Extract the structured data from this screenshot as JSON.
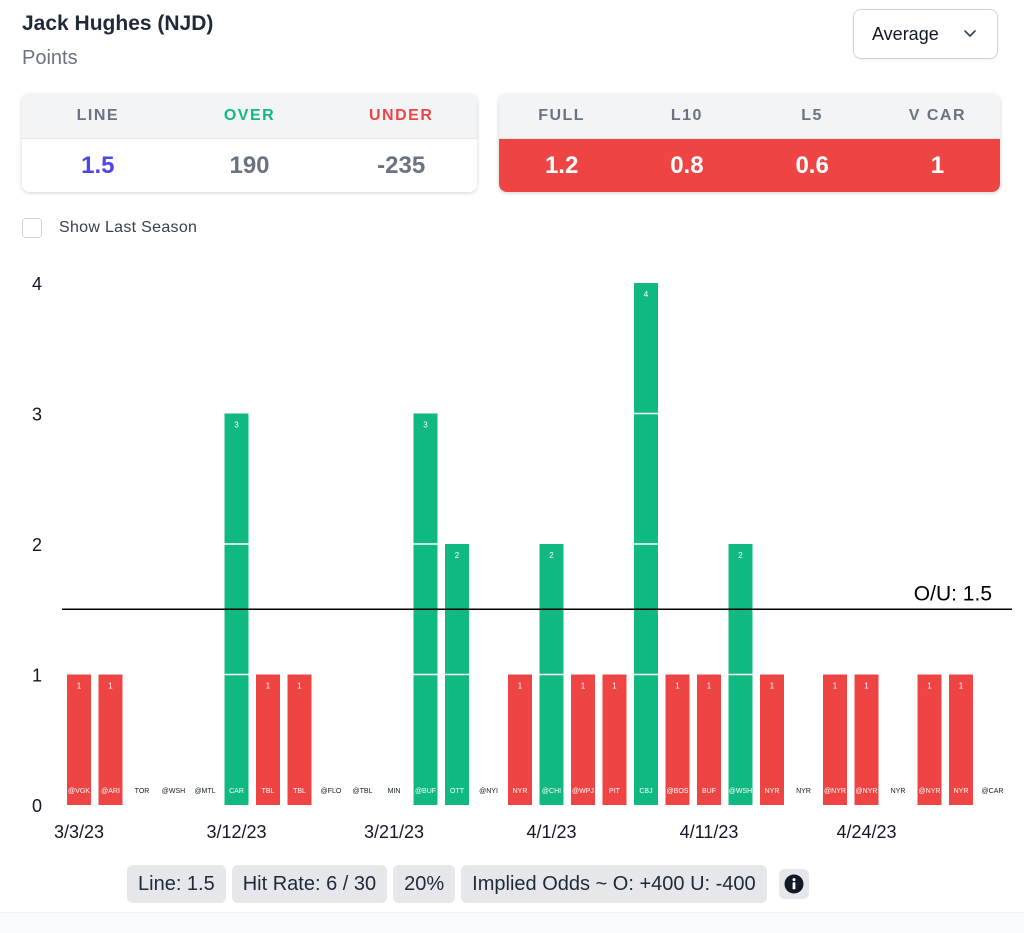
{
  "header": {
    "player_name": "Jack Hughes (NJD)",
    "stat_type": "Points"
  },
  "dropdown": {
    "selected": "Average",
    "icon": "chevron-down-icon"
  },
  "odds_card": {
    "headers": [
      "LINE",
      "OVER",
      "UNDER"
    ],
    "values": [
      "1.5",
      "190",
      "-235"
    ],
    "colors": {
      "line": "#4f46e5",
      "over_header": "#10b981",
      "under_header": "#ef4444",
      "value": "#6b7280"
    }
  },
  "avg_card": {
    "headers": [
      "FULL",
      "L10",
      "L5",
      "V CAR"
    ],
    "values": [
      "1.2",
      "0.8",
      "0.6",
      "1"
    ],
    "bg_color": "#ef4444"
  },
  "toggle": {
    "label": "Show Last Season",
    "checked": false
  },
  "chart_data": {
    "type": "bar",
    "y_ticks": [
      "0",
      "1",
      "2",
      "3",
      "4"
    ],
    "ylim": [
      0,
      4
    ],
    "line_label": "O/U: 1.5",
    "line_value": 1.5,
    "over_color": "#10b981",
    "under_color": "#ef4444",
    "opponents": [
      "@VGK",
      "@ARI",
      "TOR",
      "@WSH",
      "@MTL",
      "CAR",
      "TBL",
      "TBL",
      "@FLO",
      "@TBL",
      "MIN",
      "@BUF",
      "OTT",
      "@NYI",
      "NYR",
      "@CHI",
      "@WPJ",
      "PIT",
      "CBJ",
      "@BOS",
      "BUF",
      "@WSH",
      "NYR",
      "NYR",
      "@NYR",
      "@NYR",
      "NYR",
      "@NYR",
      "NYR",
      "@CAR"
    ],
    "values": [
      1,
      1,
      0,
      0,
      0,
      3,
      1,
      1,
      0,
      0,
      0,
      3,
      2,
      0,
      1,
      2,
      1,
      1,
      4,
      1,
      1,
      2,
      1,
      0,
      1,
      1,
      0,
      1,
      1,
      0
    ],
    "x_labels": [
      {
        "index": 0,
        "label": "3/3/23"
      },
      {
        "index": 5,
        "label": "3/12/23"
      },
      {
        "index": 10,
        "label": "3/21/23"
      },
      {
        "index": 15,
        "label": "4/1/23"
      },
      {
        "index": 20,
        "label": "4/11/23"
      },
      {
        "index": 25,
        "label": "4/24/23"
      }
    ]
  },
  "footer": {
    "line": "Line: 1.5",
    "hit_rate": "Hit Rate: 6 / 30",
    "percent": "20%",
    "implied_odds": "Implied Odds ~ O: +400 U: -400",
    "info_icon": "info-icon"
  }
}
